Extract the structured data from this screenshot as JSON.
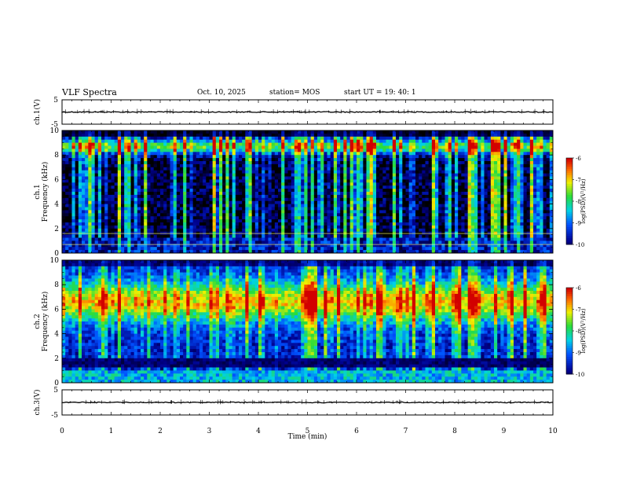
{
  "header": {
    "title": "VLF Spectra",
    "date": "Oct. 10, 2025",
    "station": "station= MOS",
    "start": "start  UT =   19: 40: 1"
  },
  "chart_data": [
    {
      "type": "line",
      "name": "ch1-waveform",
      "ylabel": "ch.1(V)",
      "ylim": [
        -5,
        5
      ],
      "yticks": [
        "5",
        "-5"
      ],
      "xlim": [
        0,
        10
      ],
      "description_series": "flat trace near 0 V with small spikes"
    },
    {
      "type": "heatmap",
      "name": "ch1-spectrogram",
      "ylabel_top": "ch.1",
      "ylabel": "Frequency (kHz)",
      "ylim": [
        0,
        10
      ],
      "yticks": [
        "0",
        "2",
        "4",
        "6",
        "8",
        "10"
      ],
      "xlim": [
        0,
        10
      ],
      "colorbar": {
        "label": "log(PSD)(V²/Hz)",
        "range": [
          -10,
          -6
        ],
        "ticks": [
          "-6",
          "-7",
          "-8",
          "-9",
          "-10"
        ]
      }
    },
    {
      "type": "heatmap",
      "name": "ch2-spectrogram",
      "ylabel_top": "ch.2",
      "ylabel": "Frequency (kHz)",
      "ylim": [
        0,
        10
      ],
      "yticks": [
        "0",
        "2",
        "4",
        "6",
        "8",
        "10"
      ],
      "xlim": [
        0,
        10
      ],
      "colorbar": {
        "label": "log(PSD)(V²/Hz)",
        "range": [
          -10,
          -6
        ],
        "ticks": [
          "-6",
          "-7",
          "-8",
          "-9",
          "-10"
        ]
      }
    },
    {
      "type": "line",
      "name": "ch3-waveform",
      "ylabel": "ch.3(V)",
      "ylim": [
        -5,
        5
      ],
      "yticks": [
        "5",
        "-5"
      ],
      "xlim": [
        0,
        10
      ],
      "xlabel": "Time  (min)",
      "xticks": [
        "0",
        "1",
        "2",
        "3",
        "4",
        "5",
        "6",
        "7",
        "8",
        "9",
        "10"
      ]
    }
  ]
}
